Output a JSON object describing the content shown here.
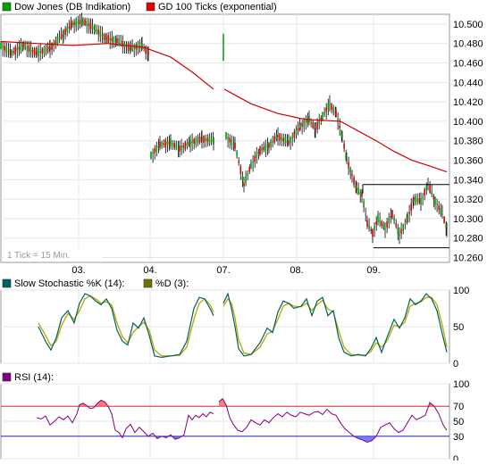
{
  "chart_data": [
    {
      "type": "candlestick",
      "legend": [
        {
          "label": "Dow Jones (DB Indikation)",
          "color": "#00a000"
        },
        {
          "label": "GD 100 Ticks (exponential)",
          "color": "#e00000"
        }
      ],
      "note": "1 Tick = 15 Min.",
      "x_ticks": [
        "03.",
        "04.",
        "07.",
        "08.",
        "09."
      ],
      "y_ticks": [
        "10.500",
        "10.480",
        "10.460",
        "10.440",
        "10.420",
        "10.400",
        "10.380",
        "10.360",
        "10.340",
        "10.320",
        "10.300",
        "10.280",
        "10.260"
      ],
      "ylim": [
        10255,
        10510
      ],
      "price_path": [
        [
          0,
          10478
        ],
        [
          12,
          10470
        ],
        [
          25,
          10478
        ],
        [
          40,
          10470
        ],
        [
          55,
          10475
        ],
        [
          70,
          10490
        ],
        [
          80,
          10500
        ],
        [
          92,
          10503
        ],
        [
          105,
          10495
        ],
        [
          118,
          10485
        ],
        [
          130,
          10483
        ],
        [
          145,
          10475
        ],
        [
          158,
          10478
        ],
        [
          165,
          10470
        ],
        null,
        [
          168,
          10365
        ],
        [
          178,
          10376
        ],
        [
          190,
          10378
        ],
        [
          200,
          10372
        ],
        [
          212,
          10378
        ],
        [
          225,
          10382
        ],
        [
          238,
          10380
        ],
        null,
        [
          249,
          10478
        ],
        null,
        [
          252,
          10385
        ],
        [
          262,
          10375
        ],
        [
          272,
          10335
        ],
        [
          280,
          10355
        ],
        [
          290,
          10370
        ],
        [
          300,
          10375
        ],
        [
          310,
          10385
        ],
        [
          322,
          10378
        ],
        [
          335,
          10395
        ],
        [
          345,
          10402
        ],
        [
          352,
          10392
        ],
        [
          360,
          10405
        ],
        [
          368,
          10418
        ],
        [
          375,
          10408
        ],
        [
          382,
          10385
        ],
        [
          387,
          10360
        ],
        [
          393,
          10345
        ],
        [
          398,
          10330
        ],
        [
          404,
          10325
        ],
        [
          410,
          10295
        ],
        [
          416,
          10285
        ],
        [
          422,
          10300
        ],
        [
          430,
          10290
        ],
        [
          438,
          10305
        ],
        [
          446,
          10283
        ],
        [
          455,
          10300
        ],
        [
          462,
          10320
        ],
        [
          470,
          10318
        ],
        [
          478,
          10335
        ],
        [
          486,
          10318
        ],
        [
          494,
          10305
        ],
        [
          499,
          10290
        ]
      ],
      "ema_path": [
        [
          0,
          10482
        ],
        [
          40,
          10480
        ],
        [
          80,
          10478
        ],
        [
          120,
          10480
        ],
        [
          160,
          10476
        ],
        [
          190,
          10466
        ],
        [
          215,
          10450
        ],
        [
          238,
          10433
        ],
        null,
        [
          250,
          10433
        ],
        [
          280,
          10418
        ],
        [
          310,
          10408
        ],
        [
          340,
          10402
        ],
        [
          360,
          10401
        ],
        [
          380,
          10400
        ],
        [
          400,
          10390
        ],
        [
          420,
          10380
        ],
        [
          440,
          10369
        ],
        [
          460,
          10360
        ],
        [
          480,
          10354
        ],
        [
          499,
          10348
        ]
      ],
      "channel": {
        "x_start": 405,
        "x_end": 502,
        "upper": 10335,
        "lower": 10270
      }
    },
    {
      "type": "line",
      "legend": [
        {
          "label": "Slow Stochastic %K (14):",
          "color": "#006060"
        },
        {
          "label": "%D (3):",
          "color": "#707000"
        }
      ],
      "y_ticks": [
        "100",
        "50",
        "0"
      ],
      "ylim": [
        0,
        100
      ],
      "k_path": [
        [
          42,
          50
        ],
        [
          50,
          30
        ],
        [
          56,
          18
        ],
        [
          62,
          35
        ],
        [
          68,
          62
        ],
        [
          75,
          72
        ],
        [
          82,
          55
        ],
        [
          88,
          82
        ],
        [
          94,
          95
        ],
        [
          100,
          92
        ],
        [
          106,
          85
        ],
        [
          112,
          80
        ],
        [
          118,
          88
        ],
        [
          124,
          75
        ],
        [
          130,
          45
        ],
        [
          136,
          30
        ],
        [
          142,
          25
        ],
        [
          148,
          55
        ],
        [
          154,
          48
        ],
        [
          160,
          62
        ],
        [
          166,
          38
        ],
        [
          172,
          10
        ],
        [
          180,
          8
        ],
        [
          190,
          10
        ],
        [
          200,
          12
        ],
        [
          208,
          30
        ],
        [
          216,
          75
        ],
        [
          222,
          90
        ],
        [
          228,
          88
        ],
        [
          234,
          75
        ],
        [
          238,
          65
        ],
        null,
        [
          249,
          82
        ],
        [
          254,
          95
        ],
        [
          258,
          75
        ],
        [
          262,
          50
        ],
        [
          266,
          20
        ],
        [
          272,
          10
        ],
        [
          280,
          12
        ],
        [
          290,
          28
        ],
        [
          298,
          48
        ],
        [
          304,
          42
        ],
        [
          310,
          70
        ],
        [
          316,
          85
        ],
        [
          322,
          82
        ],
        [
          328,
          75
        ],
        [
          336,
          78
        ],
        [
          342,
          88
        ],
        [
          348,
          65
        ],
        [
          354,
          85
        ],
        [
          360,
          90
        ],
        [
          366,
          65
        ],
        [
          372,
          72
        ],
        [
          378,
          35
        ],
        [
          384,
          15
        ],
        [
          392,
          10
        ],
        [
          400,
          12
        ],
        [
          408,
          10
        ],
        [
          414,
          20
        ],
        [
          420,
          35
        ],
        [
          426,
          15
        ],
        [
          432,
          35
        ],
        [
          440,
          60
        ],
        [
          446,
          48
        ],
        [
          452,
          62
        ],
        [
          458,
          88
        ],
        [
          464,
          80
        ],
        [
          470,
          85
        ],
        [
          476,
          95
        ],
        [
          482,
          88
        ],
        [
          488,
          72
        ],
        [
          494,
          40
        ],
        [
          499,
          15
        ]
      ],
      "d_path": [
        [
          42,
          55
        ],
        [
          50,
          38
        ],
        [
          56,
          24
        ],
        [
          62,
          30
        ],
        [
          68,
          52
        ],
        [
          75,
          68
        ],
        [
          82,
          60
        ],
        [
          88,
          72
        ],
        [
          94,
          88
        ],
        [
          100,
          92
        ],
        [
          106,
          88
        ],
        [
          112,
          82
        ],
        [
          118,
          84
        ],
        [
          124,
          80
        ],
        [
          130,
          55
        ],
        [
          136,
          36
        ],
        [
          142,
          28
        ],
        [
          148,
          42
        ],
        [
          154,
          50
        ],
        [
          160,
          56
        ],
        [
          166,
          45
        ],
        [
          172,
          18
        ],
        [
          180,
          10
        ],
        [
          190,
          10
        ],
        [
          200,
          11
        ],
        [
          208,
          22
        ],
        [
          216,
          60
        ],
        [
          222,
          82
        ],
        [
          228,
          88
        ],
        [
          234,
          80
        ],
        [
          238,
          70
        ],
        null,
        [
          249,
          78
        ],
        [
          254,
          88
        ],
        [
          258,
          82
        ],
        [
          262,
          62
        ],
        [
          266,
          32
        ],
        [
          272,
          14
        ],
        [
          280,
          12
        ],
        [
          290,
          22
        ],
        [
          298,
          40
        ],
        [
          304,
          44
        ],
        [
          310,
          60
        ],
        [
          316,
          78
        ],
        [
          322,
          82
        ],
        [
          328,
          78
        ],
        [
          336,
          77
        ],
        [
          342,
          82
        ],
        [
          348,
          72
        ],
        [
          354,
          80
        ],
        [
          360,
          86
        ],
        [
          366,
          74
        ],
        [
          372,
          70
        ],
        [
          378,
          45
        ],
        [
          384,
          22
        ],
        [
          392,
          12
        ],
        [
          400,
          11
        ],
        [
          408,
          11
        ],
        [
          414,
          16
        ],
        [
          420,
          28
        ],
        [
          426,
          22
        ],
        [
          432,
          30
        ],
        [
          440,
          52
        ],
        [
          446,
          50
        ],
        [
          452,
          56
        ],
        [
          458,
          78
        ],
        [
          464,
          82
        ],
        [
          470,
          84
        ],
        [
          476,
          90
        ],
        [
          482,
          90
        ],
        [
          488,
          80
        ],
        [
          494,
          52
        ],
        [
          499,
          22
        ]
      ]
    },
    {
      "type": "line",
      "legend": [
        {
          "label": "RSI (14):",
          "color": "#800080"
        }
      ],
      "y_ticks": [
        "100",
        "70",
        "50",
        "30",
        "0"
      ],
      "ylim": [
        0,
        100
      ],
      "thresholds": {
        "upper": 70,
        "lower": 30,
        "upper_color": "#e00000",
        "lower_color": "#0000c0"
      },
      "rsi_path": [
        [
          40,
          55
        ],
        [
          45,
          53
        ],
        [
          50,
          57
        ],
        [
          55,
          45
        ],
        [
          60,
          50
        ],
        [
          65,
          56
        ],
        [
          70,
          52
        ],
        [
          75,
          57
        ],
        [
          80,
          48
        ],
        [
          85,
          60
        ],
        [
          88,
          72
        ],
        [
          92,
          74
        ],
        [
          96,
          71
        ],
        [
          100,
          67
        ],
        [
          104,
          68
        ],
        [
          108,
          74
        ],
        [
          112,
          78
        ],
        [
          116,
          76
        ],
        [
          120,
          70
        ],
        [
          124,
          60
        ],
        [
          128,
          38
        ],
        [
          132,
          35
        ],
        [
          136,
          28
        ],
        [
          140,
          40
        ],
        [
          145,
          46
        ],
        [
          150,
          35
        ],
        [
          155,
          42
        ],
        [
          160,
          36
        ],
        [
          165,
          30
        ],
        [
          170,
          34
        ],
        [
          175,
          27
        ],
        [
          180,
          30
        ],
        [
          185,
          28
        ],
        [
          190,
          32
        ],
        [
          195,
          26
        ],
        [
          200,
          28
        ],
        [
          205,
          32
        ],
        [
          210,
          58
        ],
        [
          214,
          52
        ],
        [
          218,
          58
        ],
        [
          222,
          55
        ],
        [
          226,
          60
        ],
        [
          230,
          56
        ],
        [
          234,
          62
        ],
        [
          238,
          60
        ],
        null,
        [
          244,
          76
        ],
        [
          248,
          80
        ],
        [
          252,
          72
        ],
        [
          256,
          55
        ],
        [
          260,
          46
        ],
        [
          265,
          38
        ],
        [
          270,
          36
        ],
        [
          275,
          42
        ],
        [
          280,
          52
        ],
        [
          285,
          48
        ],
        [
          290,
          45
        ],
        [
          295,
          52
        ],
        [
          300,
          48
        ],
        [
          305,
          55
        ],
        [
          310,
          60
        ],
        [
          315,
          56
        ],
        [
          320,
          62
        ],
        [
          325,
          58
        ],
        [
          330,
          56
        ],
        [
          335,
          62
        ],
        [
          340,
          60
        ],
        [
          345,
          58
        ],
        [
          350,
          62
        ],
        [
          355,
          63
        ],
        [
          360,
          59
        ],
        [
          365,
          66
        ],
        [
          370,
          60
        ],
        [
          375,
          58
        ],
        [
          380,
          48
        ],
        [
          385,
          40
        ],
        [
          390,
          35
        ],
        [
          395,
          30
        ],
        [
          400,
          27
        ],
        [
          405,
          25
        ],
        [
          410,
          22
        ],
        [
          415,
          24
        ],
        [
          420,
          30
        ],
        [
          425,
          42
        ],
        [
          430,
          45
        ],
        [
          435,
          48
        ],
        [
          440,
          40
        ],
        [
          445,
          35
        ],
        [
          450,
          38
        ],
        [
          455,
          48
        ],
        [
          460,
          58
        ],
        [
          465,
          52
        ],
        [
          470,
          55
        ],
        [
          475,
          58
        ],
        [
          480,
          75
        ],
        [
          485,
          70
        ],
        [
          490,
          60
        ],
        [
          495,
          45
        ],
        [
          499,
          38
        ]
      ]
    }
  ]
}
